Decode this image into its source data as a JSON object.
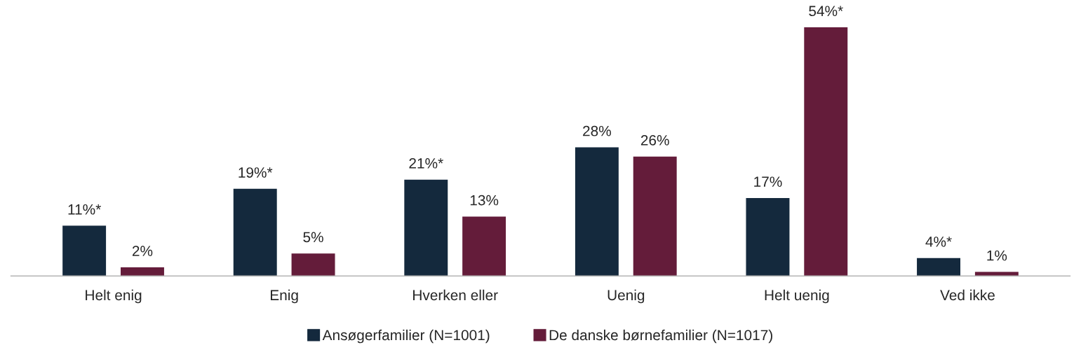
{
  "chart_data": {
    "type": "bar",
    "categories": [
      "Helt enig",
      "Enig",
      "Hverken eller",
      "Uenig",
      "Helt uenig",
      "Ved ikke"
    ],
    "series": [
      {
        "name": "Ansøgerfamilier (N=1001)",
        "color": "#14293d",
        "values": [
          11,
          19,
          21,
          28,
          17,
          4
        ],
        "value_labels": [
          "11%*",
          "19%*",
          "21%*",
          "28%",
          "17%",
          "4%*"
        ]
      },
      {
        "name": "De danske børnefamilier (N=1017)",
        "color": "#641c3a",
        "values": [
          2,
          5,
          13,
          26,
          54,
          1
        ],
        "value_labels": [
          "2%",
          "5%",
          "13%",
          "26%",
          "54%*",
          "1%"
        ]
      }
    ],
    "legend": "bottom",
    "grid": false
  }
}
